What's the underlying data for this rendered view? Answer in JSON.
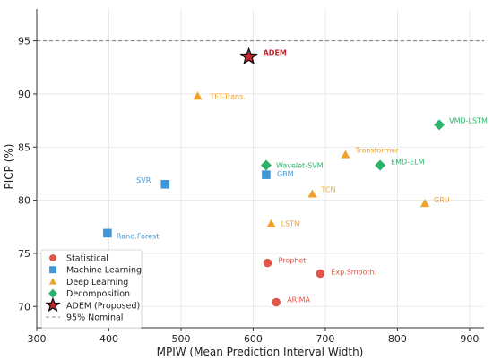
{
  "chart_data": {
    "type": "scatter",
    "xlabel": "MPIW (Mean Prediction Interval Width)",
    "ylabel": "PICP (%)",
    "xlim": [
      300,
      920
    ],
    "ylim": [
      68,
      98
    ],
    "xticks": [
      300,
      400,
      500,
      600,
      700,
      800,
      900
    ],
    "yticks": [
      70,
      75,
      80,
      85,
      90,
      95
    ],
    "grid": true,
    "legend_position": "bottom-left",
    "reference_line": {
      "y": 95,
      "label": "95% Nominal",
      "style": "dashed",
      "color": "#888888"
    },
    "series": [
      {
        "name": "Statistical",
        "marker": "circle",
        "color": "#e0564b",
        "points": [
          {
            "label": "Prophet",
            "x": 620,
            "y": 74.1
          },
          {
            "label": "Exp.Smooth.",
            "x": 693,
            "y": 73.1
          },
          {
            "label": "ARIMA",
            "x": 632,
            "y": 70.4
          }
        ]
      },
      {
        "name": "Machine Learning",
        "marker": "square",
        "color": "#3f97d8",
        "points": [
          {
            "label": "SVR",
            "x": 478,
            "y": 81.5
          },
          {
            "label": "GBM",
            "x": 618,
            "y": 82.4
          },
          {
            "label": "Rand.Forest",
            "x": 398,
            "y": 76.9
          }
        ]
      },
      {
        "name": "Deep Learning",
        "marker": "triangle",
        "color": "#f0a12c",
        "points": [
          {
            "label": "TFT-Trans.",
            "x": 523,
            "y": 89.8
          },
          {
            "label": "Transformer",
            "x": 728,
            "y": 84.3
          },
          {
            "label": "TCN",
            "x": 682,
            "y": 80.6
          },
          {
            "label": "GRU",
            "x": 838,
            "y": 79.7
          },
          {
            "label": "LSTM",
            "x": 625,
            "y": 77.8
          }
        ]
      },
      {
        "name": "Decomposition",
        "marker": "diamond",
        "color": "#2bb36a",
        "points": [
          {
            "label": "VMD-LSTM",
            "x": 858,
            "y": 87.1
          },
          {
            "label": "Wavelet-SVM",
            "x": 618,
            "y": 83.3
          },
          {
            "label": "EMD-ELM",
            "x": 776,
            "y": 83.3
          }
        ]
      },
      {
        "name": "ADEM (Proposed)",
        "marker": "star",
        "color": "#c0272d",
        "points": [
          {
            "label": "ADEM",
            "x": 594,
            "y": 93.5
          }
        ]
      }
    ]
  }
}
